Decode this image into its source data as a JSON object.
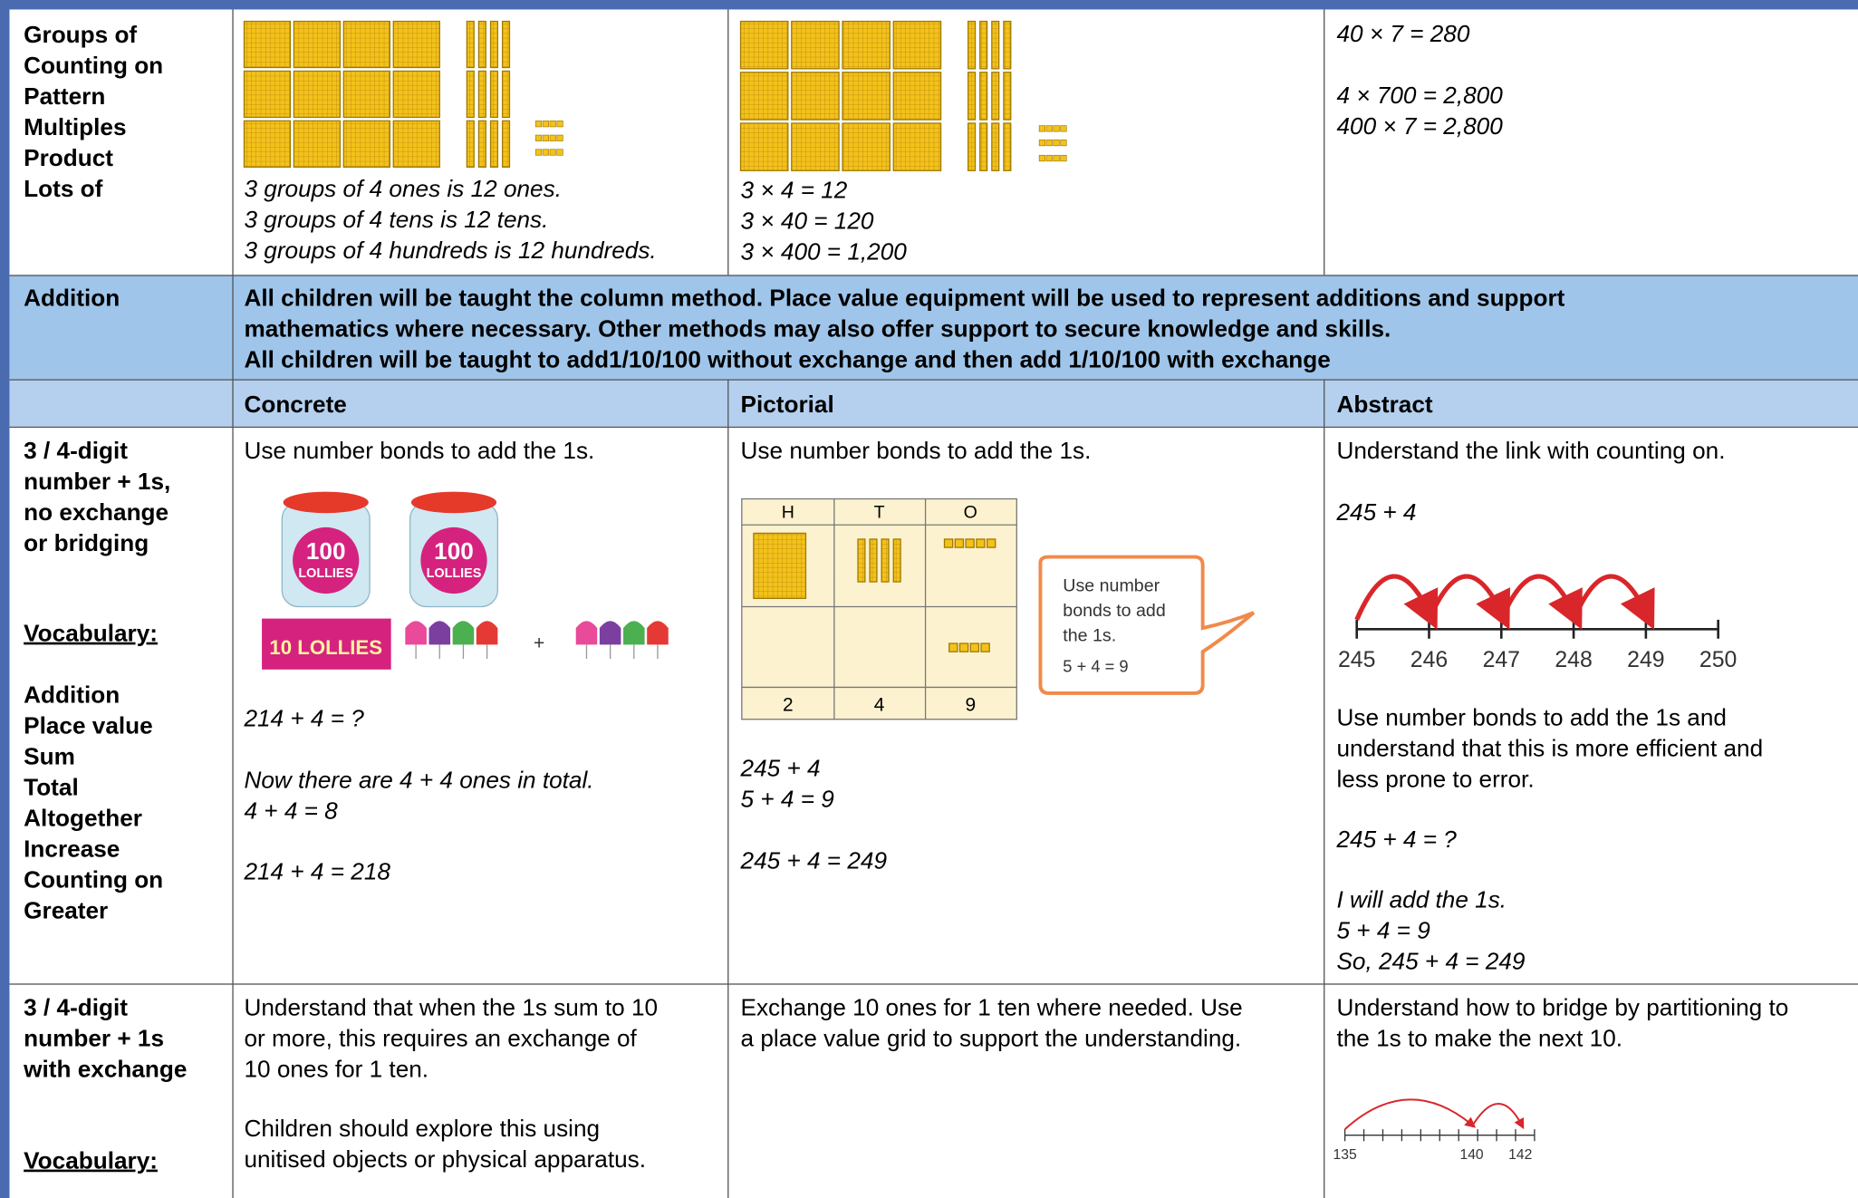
{
  "multiplication": {
    "label": [
      "Groups of",
      "Counting on",
      "Pattern",
      "Multiples",
      "Product",
      "Lots of"
    ],
    "concrete": [
      "3 groups of 4 ones is 12 ones.",
      "3 groups of 4 tens is 12 tens.",
      "3 groups of 4 hundreds is 12 hundreds."
    ],
    "pictorial": [
      "3 × 4 = 12",
      "3 × 40 = 120",
      "3 × 400 = 1,200"
    ],
    "abstract_first": [
      "40 × 7 = 280"
    ],
    "abstract_second": [
      "4 × 700 = 2,800",
      "400 × 7 = 2,800"
    ]
  },
  "addition": {
    "label": "Addition",
    "text": [
      "All children will be taught the column method. Place value equipment will be used to represent additions and support",
      "mathematics where necessary. Other methods may also offer support to secure knowledge and skills.",
      "All children will be taught to add1/10/100 without exchange and then add 1/10/100 with exchange"
    ]
  },
  "headers": [
    "Concrete",
    "Pictorial",
    "Abstract"
  ],
  "no_exchange": {
    "label": [
      "3 / 4-digit",
      "number + 1s,",
      "no exchange",
      "or bridging"
    ],
    "vocabulary_heading": "Vocabulary:",
    "vocabulary": [
      "Addition",
      "Place value",
      "Sum",
      "Total",
      "Altogether",
      "Increase",
      "Counting on",
      "Greater"
    ],
    "concrete": {
      "intro": "Use number bonds to add the 1s.",
      "jar_number": "100",
      "jar_word": "LOLLIES",
      "box_label": "10 LOLLIES",
      "plus": "+",
      "question": [
        "214 + 4 = ?"
      ],
      "working": [
        "Now there are 4 + 4 ones in total.",
        "4 + 4 = 8"
      ],
      "answer": [
        "214 + 4 = 218"
      ]
    },
    "pictorial": {
      "intro": "Use number bonds to add the 1s.",
      "grid_headers": [
        "H",
        "T",
        "O"
      ],
      "grid_digits": [
        "2",
        "4",
        "9"
      ],
      "bubble": [
        "Use number",
        "bonds to add",
        "the 1s.",
        "5 + 4 = 9"
      ],
      "working": [
        "245 + 4",
        "5 + 4 = 9"
      ],
      "answer": [
        "245 + 4 = 249"
      ]
    },
    "abstract": {
      "intro": "Understand the link with counting on.",
      "sum": "245 + 4",
      "number_line": [
        "245",
        "246",
        "247",
        "248",
        "249",
        "250"
      ],
      "explanation": [
        "Use number bonds to add the 1s and",
        "understand that this is more efficient and",
        "less prone to error."
      ],
      "question": [
        "245 + 4 = ?"
      ],
      "working": [
        "I will add the 1s.",
        "5 + 4 = 9",
        "So, 245 + 4 = 249"
      ]
    }
  },
  "with_exchange": {
    "label": [
      "3 / 4-digit",
      "number + 1s",
      "with exchange"
    ],
    "vocabulary_heading": "Vocabulary:",
    "concrete_first": [
      "Understand that when the 1s sum to 10",
      "or more, this requires an exchange of",
      "10 ones for 1 ten."
    ],
    "concrete_second": [
      "Children should explore this using",
      "unitised objects or physical apparatus."
    ],
    "pictorial": [
      "Exchange 10 ones for 1 ten where needed. Use",
      "a place value grid to support the understanding."
    ],
    "abstract": [
      "Understand how to bridge by partitioning to",
      "the 1s to make the next 10."
    ],
    "number_line": [
      "135",
      "140",
      "142"
    ]
  }
}
